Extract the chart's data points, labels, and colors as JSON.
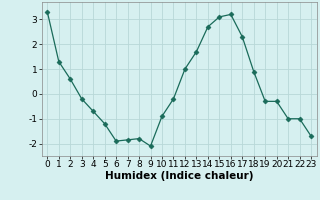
{
  "x": [
    0,
    1,
    2,
    3,
    4,
    5,
    6,
    7,
    8,
    9,
    10,
    11,
    12,
    13,
    14,
    15,
    16,
    17,
    18,
    19,
    20,
    21,
    22,
    23
  ],
  "y": [
    3.3,
    1.3,
    0.6,
    -0.2,
    -0.7,
    -1.2,
    -1.9,
    -1.85,
    -1.8,
    -2.1,
    -0.9,
    -0.2,
    1.0,
    1.7,
    2.7,
    3.1,
    3.2,
    2.3,
    0.9,
    -0.3,
    -0.3,
    -1.0,
    -1.0,
    -1.7
  ],
  "line_color": "#1a6b5a",
  "marker": "D",
  "marker_size": 2.5,
  "bg_color": "#d6f0f0",
  "grid_color": "#b8d8d8",
  "xlabel": "Humidex (Indice chaleur)",
  "xlim": [
    -0.5,
    23.5
  ],
  "ylim": [
    -2.5,
    3.7
  ],
  "yticks": [
    -2,
    -1,
    0,
    1,
    2,
    3
  ],
  "xticks": [
    0,
    1,
    2,
    3,
    4,
    5,
    6,
    7,
    8,
    9,
    10,
    11,
    12,
    13,
    14,
    15,
    16,
    17,
    18,
    19,
    20,
    21,
    22,
    23
  ],
  "tick_label_fontsize": 6.5,
  "xlabel_fontsize": 7.5,
  "figsize": [
    3.2,
    2.0
  ],
  "dpi": 100
}
